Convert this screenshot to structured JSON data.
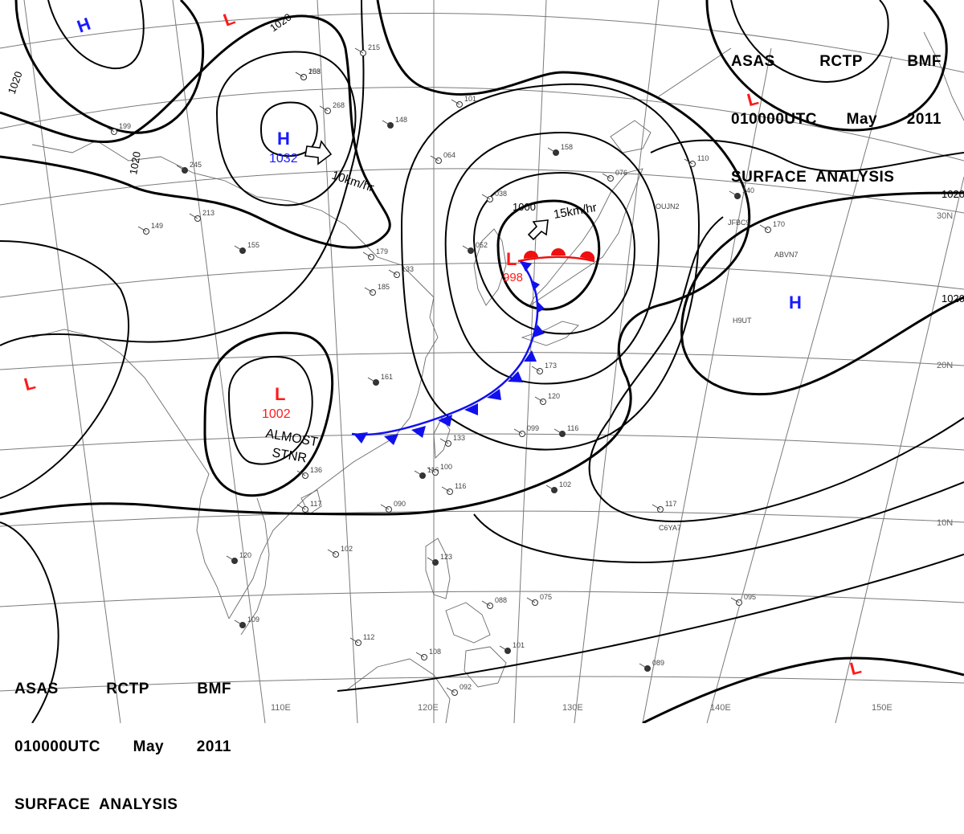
{
  "header": {
    "line1": [
      "ASAS",
      "RCTP",
      "BMF"
    ],
    "line2": [
      "010000UTC",
      "May",
      "2011"
    ],
    "line3": "SURFACE  ANALYSIS"
  },
  "colors": {
    "isobar": "#000000",
    "grid": "#7a7a7a",
    "coast": "#6a6a6a",
    "high": "#1a1aff",
    "low": "#ff1a1a",
    "cold_front": "#1010ee",
    "warm_front": "#ee1010",
    "station": "#444444"
  },
  "grid_labels": {
    "lon": [
      "110E",
      "120E",
      "130E",
      "140E",
      "150E"
    ],
    "lat": [
      "30N",
      "20N",
      "10N"
    ]
  },
  "isobar_labels": [
    "1020",
    "1020",
    "1020",
    "1000",
    "1020",
    "1020"
  ],
  "pressure_centers": [
    {
      "type": "H",
      "value": ""
    },
    {
      "type": "L",
      "value": ""
    },
    {
      "type": "H",
      "value": "1032"
    },
    {
      "type": "L",
      "value": ""
    },
    {
      "type": "L",
      "value": "998"
    },
    {
      "type": "L",
      "value": ""
    },
    {
      "type": "L",
      "value": "1002"
    },
    {
      "type": "H",
      "value": ""
    },
    {
      "type": "L",
      "value": ""
    }
  ],
  "annotations": {
    "motion1": "10km/hr",
    "motion2": "15km/hr",
    "stnr_line1": "ALMOST",
    "stnr_line2": "STNR"
  },
  "station_labels": [
    "253",
    "268",
    "215",
    "148",
    "101",
    "064",
    "158",
    "076",
    "110",
    "140",
    "170",
    "038",
    "052",
    "133",
    "213",
    "245",
    "199",
    "149",
    "155",
    "179",
    "185",
    "161",
    "173",
    "120",
    "116",
    "099",
    "133",
    "116",
    "117",
    "090",
    "102",
    "117",
    "136",
    "120",
    "102",
    "116",
    "109",
    "112",
    "108",
    "101",
    "075",
    "095",
    "089",
    "092",
    "100",
    "123",
    "088",
    "108"
  ],
  "ship_ids": [
    "OUJN2",
    "JFBC9",
    "ABVN7",
    "H9UT",
    "C6YA7"
  ]
}
